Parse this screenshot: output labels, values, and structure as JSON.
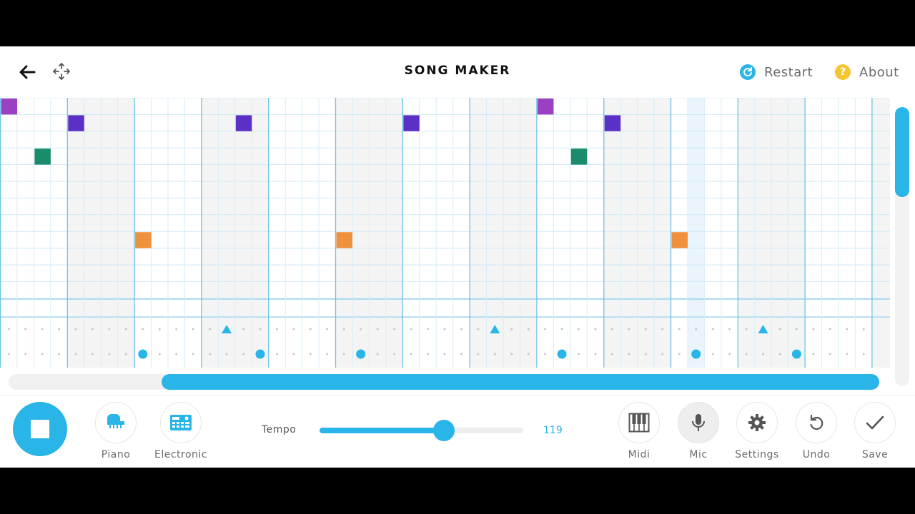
{
  "header": {
    "title": "SONG MAKER",
    "restart_label": "Restart",
    "restart_icon": "refresh-icon",
    "restart_color": "#29b5e8",
    "about_label": "About",
    "about_icon": "question-icon",
    "about_glyph": "?",
    "about_color": "#f5c431"
  },
  "grid": {
    "columns": 52,
    "beats_per_bar": 4,
    "pitch_rows": 12,
    "notes": [
      {
        "col": 0,
        "row": 0,
        "color": "#9b3fc3"
      },
      {
        "col": 2,
        "row": 3,
        "color": "#1a8c6c"
      },
      {
        "col": 4,
        "row": 1,
        "color": "#5a30c7"
      },
      {
        "col": 8,
        "row": 8,
        "color": "#f0913e"
      },
      {
        "col": 14,
        "row": 1,
        "color": "#5a30c7"
      },
      {
        "col": 20,
        "row": 8,
        "color": "#f0913e"
      },
      {
        "col": 24,
        "row": 1,
        "color": "#5a30c7"
      },
      {
        "col": 32,
        "row": 0,
        "color": "#9b3fc3"
      },
      {
        "col": 34,
        "row": 3,
        "color": "#1a8c6c"
      },
      {
        "col": 36,
        "row": 1,
        "color": "#5a30c7"
      },
      {
        "col": 40,
        "row": 8,
        "color": "#f0913e"
      }
    ],
    "percussion_triangles": [
      13,
      29,
      45
    ],
    "percussion_circles": [
      8,
      15,
      21,
      33,
      41,
      47
    ],
    "accent_color": "#29b5e8"
  },
  "toolbar": {
    "stop_icon": "stop-icon",
    "instruments": [
      {
        "label": "Piano",
        "icon": "piano-icon"
      },
      {
        "label": "Electronic",
        "icon": "electronic-icon"
      }
    ],
    "tempo_label": "Tempo",
    "tempo_value": "119",
    "tempo_fraction": 0.61,
    "actions": [
      {
        "label": "Midi",
        "icon": "piano-keys-icon"
      },
      {
        "label": "Mic",
        "icon": "microphone-icon"
      },
      {
        "label": "Settings",
        "icon": "gear-icon"
      },
      {
        "label": "Undo",
        "icon": "undo-icon"
      },
      {
        "label": "Save",
        "icon": "checkmark-icon"
      }
    ]
  },
  "scroll": {
    "horizontal_fraction": 0.82
  }
}
